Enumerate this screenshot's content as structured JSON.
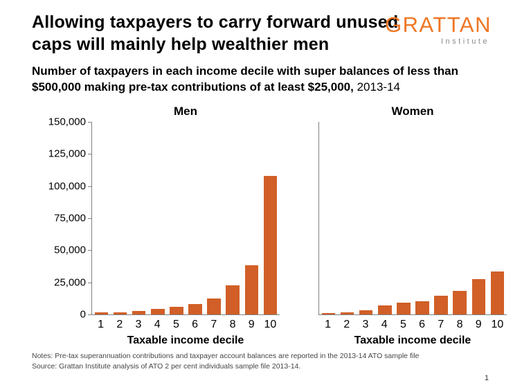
{
  "header": {
    "title_line1": "Allowing taxpayers to carry forward unused",
    "title_line2": "caps will mainly help wealthier men",
    "logo_text": "GRATTAN",
    "logo_subtext": "Institute"
  },
  "subtitle": {
    "bold": "Number of taxpayers in each income decile with super balances of less than $500,000 making pre-tax contributions of at least $25,000,",
    "normal": " 2013-14"
  },
  "chart_data": {
    "type": "bar",
    "categories": [
      "1",
      "2",
      "3",
      "4",
      "5",
      "6",
      "7",
      "8",
      "9",
      "10"
    ],
    "series": [
      {
        "name": "Men",
        "values": [
          1500,
          1500,
          2700,
          4300,
          6000,
          8000,
          12500,
          22500,
          38000,
          108000
        ]
      },
      {
        "name": "Women",
        "values": [
          1000,
          1500,
          3000,
          7000,
          9000,
          10000,
          14500,
          18500,
          27500,
          33500
        ]
      }
    ],
    "xlabel": "Taxable income decile",
    "ylabel": "",
    "ylim": [
      0,
      150000
    ],
    "yticks": [
      0,
      25000,
      50000,
      75000,
      100000,
      125000,
      150000
    ],
    "ytick_labels": [
      "0",
      "25,000",
      "50,000",
      "75,000",
      "100,000",
      "125,000",
      "150,000"
    ],
    "bar_color": "#D15F27",
    "axis_color": "#7f7f7f",
    "grid": "off",
    "legend": "none"
  },
  "footer": {
    "note1": "Notes: Pre-tax superannuation contributions and taxpayer account balances are reported in the 2013-14 ATO sample file",
    "note2": "Source: Grattan Institute analysis of ATO 2 per cent individuals sample file 2013-14.",
    "page_number": "1"
  }
}
